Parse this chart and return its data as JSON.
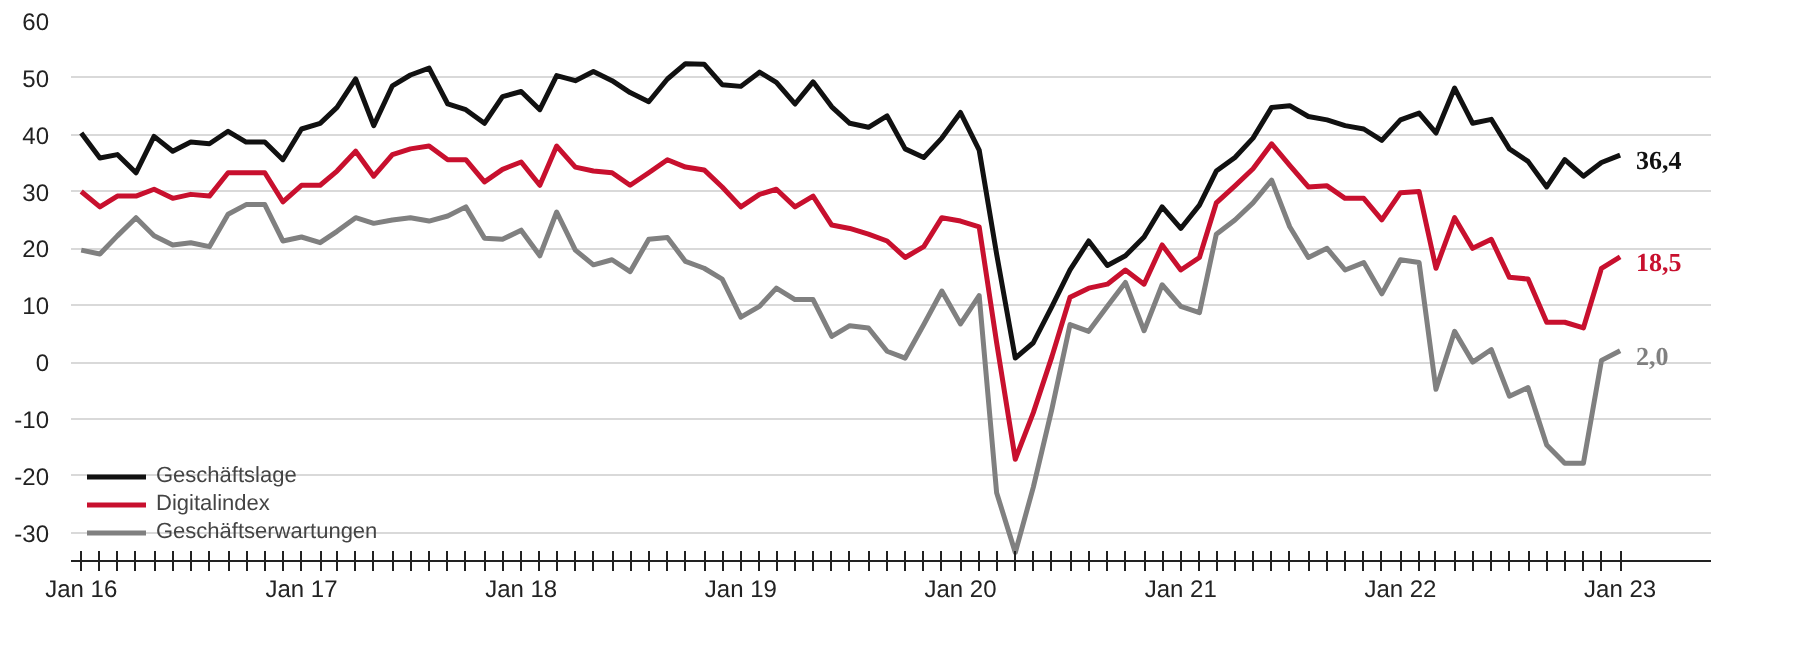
{
  "chart_data": {
    "type": "line",
    "x": [
      "2016-01",
      "2016-02",
      "2016-03",
      "2016-04",
      "2016-05",
      "2016-06",
      "2016-07",
      "2016-08",
      "2016-09",
      "2016-10",
      "2016-11",
      "2016-12",
      "2017-01",
      "2017-02",
      "2017-03",
      "2017-04",
      "2017-05",
      "2017-06",
      "2017-07",
      "2017-08",
      "2017-09",
      "2017-10",
      "2017-11",
      "2017-12",
      "2018-01",
      "2018-02",
      "2018-03",
      "2018-04",
      "2018-05",
      "2018-06",
      "2018-07",
      "2018-08",
      "2018-09",
      "2018-10",
      "2018-11",
      "2018-12",
      "2019-01",
      "2019-02",
      "2019-03",
      "2019-04",
      "2019-05",
      "2019-06",
      "2019-07",
      "2019-08",
      "2019-09",
      "2019-10",
      "2019-11",
      "2019-12",
      "2020-01",
      "2020-02",
      "2020-03",
      "2020-04",
      "2020-05",
      "2020-06",
      "2020-07",
      "2020-08",
      "2020-09",
      "2020-10",
      "2020-11",
      "2020-12",
      "2021-01",
      "2021-02",
      "2021-03",
      "2021-04",
      "2021-05",
      "2021-06",
      "2021-07",
      "2021-08",
      "2021-09",
      "2021-10",
      "2021-11",
      "2021-12",
      "2022-01",
      "2022-02",
      "2022-03",
      "2022-04",
      "2022-05",
      "2022-06",
      "2022-07",
      "2022-08",
      "2022-09",
      "2022-10",
      "2022-11",
      "2022-12",
      "2023-01"
    ],
    "series": [
      {
        "name": "Geschäftslage",
        "color": "#111111",
        "values": [
          40.3,
          35.9,
          36.5,
          33.3,
          39.7,
          37.1,
          38.7,
          38.4,
          40.6,
          38.7,
          38.7,
          35.6,
          41,
          42,
          44.8,
          49.8,
          41.6,
          48.6,
          50.5,
          51.7,
          45.4,
          44.4,
          42,
          46.7,
          47.6,
          44.4,
          50.4,
          49.5,
          51.1,
          49.5,
          47.4,
          45.8,
          49.8,
          52.5,
          52.4,
          48.8,
          48.5,
          51,
          49.2,
          45.4,
          49.3,
          44.9,
          42,
          41.3,
          43.3,
          37.5,
          36,
          39.4,
          43.9,
          37.3,
          19,
          0.7,
          3.4,
          9.8,
          16.2,
          21.3,
          17,
          18.7,
          22,
          27.3,
          23.5,
          27.6,
          33.6,
          36,
          39.4,
          44.8,
          45.1,
          43.2,
          42.6,
          41.6,
          41,
          39,
          42.6,
          43.8,
          40.3,
          48.2,
          42,
          42.7,
          37.5,
          35.3,
          30.8,
          35.6,
          32.7,
          35.1,
          36.4
        ],
        "value_labels": [
          null,
          null,
          null,
          null,
          null,
          null,
          null,
          null,
          null,
          null,
          null,
          null,
          null,
          null,
          null,
          null,
          null,
          null,
          null,
          null,
          null,
          null,
          null,
          null,
          null,
          null,
          null,
          null,
          null,
          null,
          null,
          null,
          null,
          null,
          null,
          null,
          null,
          null,
          null,
          null,
          null,
          null,
          null,
          null,
          null,
          null,
          null,
          null,
          null,
          null,
          null,
          null,
          null,
          null,
          null,
          null,
          null,
          null,
          null,
          null,
          null,
          null,
          null,
          null,
          null,
          null,
          null,
          null,
          null,
          null,
          null,
          null,
          null,
          null,
          null,
          null,
          null,
          null,
          null,
          null,
          null,
          null,
          null,
          null,
          "36,4"
        ]
      },
      {
        "name": "Digitalindex",
        "color": "#c8102e",
        "values": [
          30,
          27.3,
          29.2,
          29.2,
          30.4,
          28.8,
          29.5,
          29.2,
          33.3,
          33.3,
          33.3,
          28.2,
          31.1,
          31.1,
          33.6,
          37.1,
          32.7,
          36.5,
          37.5,
          38,
          35.6,
          35.6,
          31.7,
          33.9,
          35.2,
          31.1,
          38,
          34.3,
          33.6,
          33.3,
          31.1,
          33.3,
          35.6,
          34.3,
          33.8,
          30.8,
          27.3,
          29.5,
          30.4,
          27.3,
          29.2,
          24.1,
          23.5,
          22.5,
          21.3,
          18.4,
          20.3,
          25.4,
          24.8,
          23.8,
          3.4,
          -17.1,
          -8.9,
          1,
          11.4,
          13,
          13.7,
          16.2,
          13.7,
          20.6,
          16.2,
          18.4,
          28,
          31,
          34,
          38.4,
          34.6,
          30.8,
          31,
          28.8,
          28.8,
          25,
          29.8,
          30,
          16.5,
          25.4,
          20,
          21.6,
          14.9,
          14.6,
          7,
          7,
          6,
          16.5,
          18.5
        ],
        "value_labels": [
          null,
          null,
          null,
          null,
          null,
          null,
          null,
          null,
          null,
          null,
          null,
          null,
          null,
          null,
          null,
          null,
          null,
          null,
          null,
          null,
          null,
          null,
          null,
          null,
          null,
          null,
          null,
          null,
          null,
          null,
          null,
          null,
          null,
          null,
          null,
          null,
          null,
          null,
          null,
          null,
          null,
          null,
          null,
          null,
          null,
          null,
          null,
          null,
          null,
          null,
          null,
          null,
          null,
          null,
          null,
          null,
          null,
          null,
          null,
          null,
          null,
          null,
          null,
          null,
          null,
          null,
          null,
          null,
          null,
          null,
          null,
          null,
          null,
          null,
          null,
          null,
          null,
          null,
          null,
          null,
          null,
          null,
          null,
          null,
          "18,5"
        ]
      },
      {
        "name": "Geschäftserwartungen",
        "color": "#808080",
        "values": [
          19.7,
          19,
          22.2,
          25.4,
          22.2,
          20.6,
          21,
          20.3,
          26,
          27.7,
          27.7,
          21.3,
          22,
          21,
          23,
          25.4,
          24.4,
          25,
          25.4,
          24.8,
          25.7,
          27.3,
          21.8,
          21.6,
          23.2,
          18.7,
          26.4,
          19.7,
          17.1,
          18,
          15.9,
          21.6,
          21.9,
          17.7,
          16.5,
          14.6,
          7.9,
          9.8,
          13,
          11,
          11,
          4.5,
          6.4,
          6,
          1.9,
          0.7,
          6.6,
          12.5,
          6.7,
          11.7,
          -23,
          -33.5,
          -22,
          -8.2,
          6.6,
          5.4,
          9.8,
          14,
          5.5,
          13.6,
          9.8,
          8.7,
          22.5,
          25,
          28,
          32,
          23.8,
          18.4,
          20,
          16.2,
          17.5,
          12,
          18,
          17.5,
          -4.8,
          5.4,
          0,
          2.2,
          -6,
          -4.5,
          -14.6,
          -17.8,
          -17.8,
          0.3,
          2
        ],
        "value_labels": [
          null,
          null,
          null,
          null,
          null,
          null,
          null,
          null,
          null,
          null,
          null,
          null,
          null,
          null,
          null,
          null,
          null,
          null,
          null,
          null,
          null,
          null,
          null,
          null,
          null,
          null,
          null,
          null,
          null,
          null,
          null,
          null,
          null,
          null,
          null,
          null,
          null,
          null,
          null,
          null,
          null,
          null,
          null,
          null,
          null,
          null,
          null,
          null,
          null,
          null,
          null,
          null,
          null,
          null,
          null,
          null,
          null,
          null,
          null,
          null,
          null,
          null,
          null,
          null,
          null,
          null,
          null,
          null,
          null,
          null,
          null,
          null,
          null,
          null,
          null,
          null,
          null,
          null,
          null,
          null,
          null,
          null,
          null,
          null,
          "2,0"
        ]
      }
    ],
    "xlim": [
      "2015-12-15",
      "2023-06"
    ],
    "xticks": [
      {
        "value": "2016-01",
        "label": "Jan 16"
      },
      {
        "value": "2017-01",
        "label": "Jan 17"
      },
      {
        "value": "2018-01",
        "label": "Jan 18"
      },
      {
        "value": "2019-01",
        "label": "Jan 19"
      },
      {
        "value": "2020-01",
        "label": "Jan 20"
      },
      {
        "value": "2021-01",
        "label": "Jan 21"
      },
      {
        "value": "2022-01",
        "label": "Jan 22"
      },
      {
        "value": "2023-01",
        "label": "Jan 23"
      }
    ],
    "ylim": [
      -35,
      60
    ],
    "yticks": [
      -30,
      -20,
      -10,
      0,
      10,
      20,
      30,
      40,
      50,
      60
    ],
    "grid": "y",
    "legend": "bottom left",
    "line_style": "solid",
    "marker": "none"
  }
}
